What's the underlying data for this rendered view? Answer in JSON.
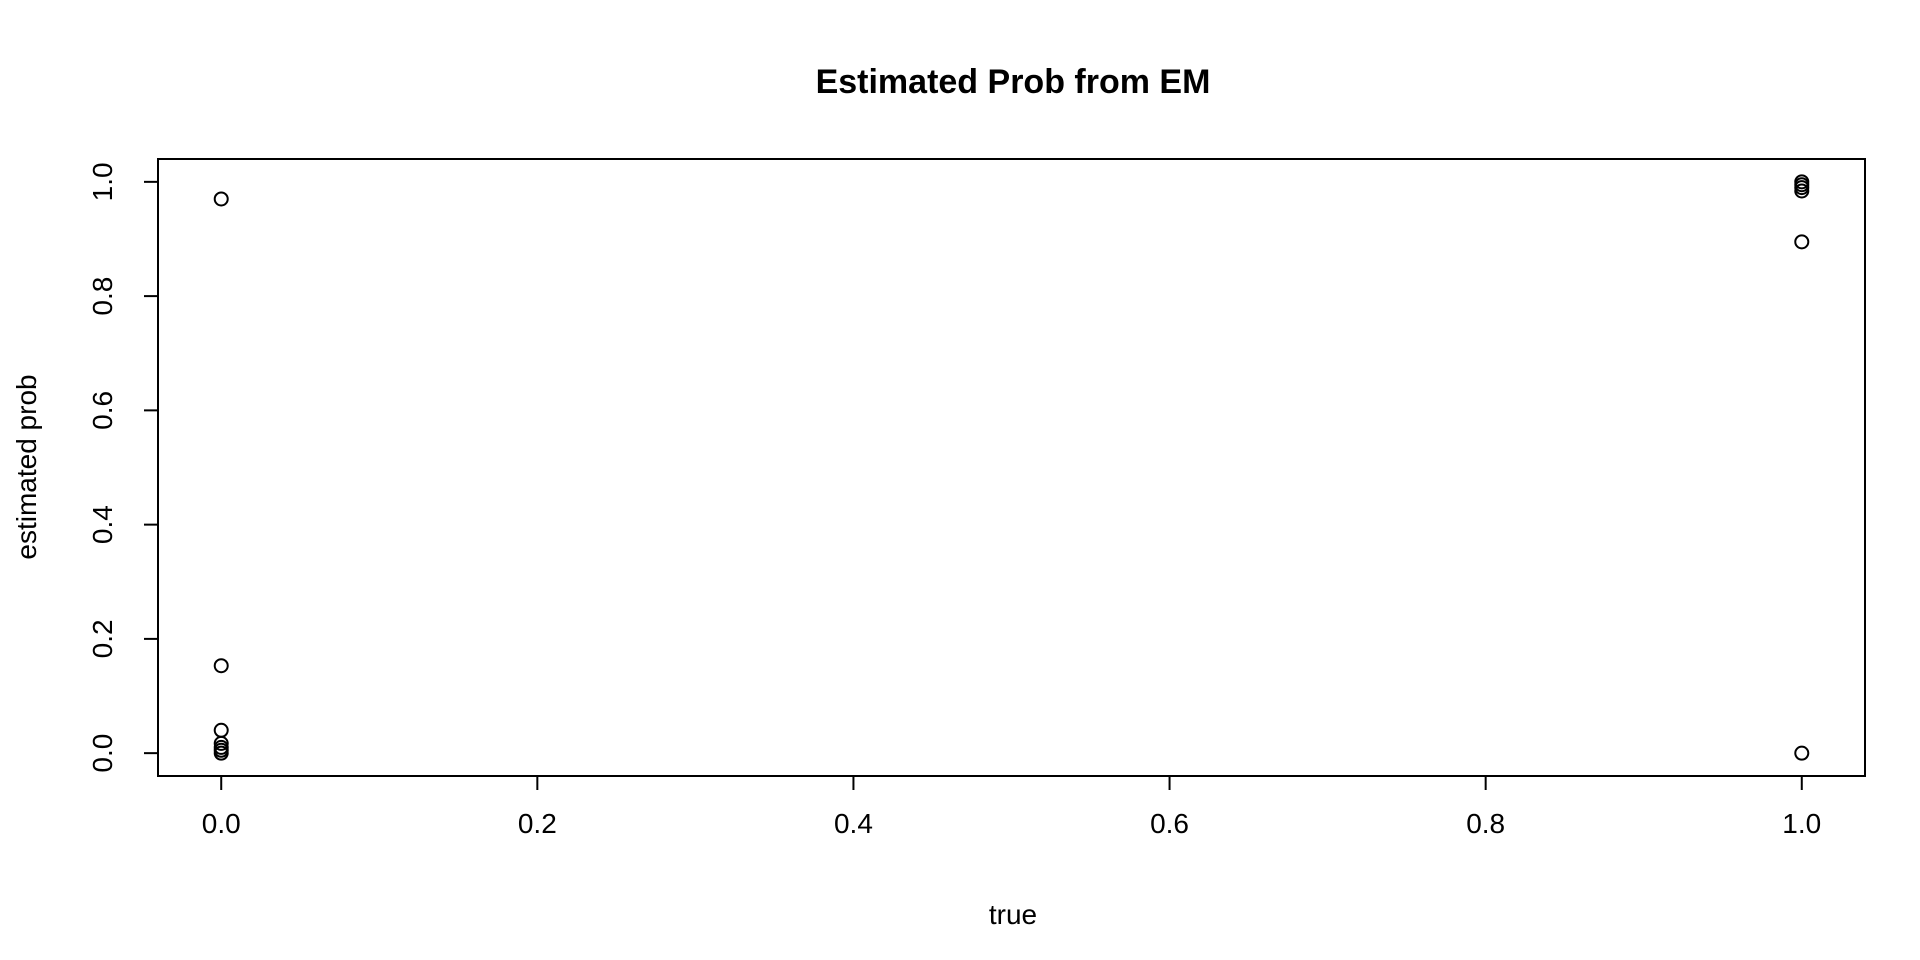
{
  "chart_data": {
    "type": "scatter",
    "title": "Estimated Prob from EM",
    "xlabel": "true",
    "ylabel": "estimated prob",
    "xlim": [
      -0.04,
      1.04
    ],
    "ylim": [
      -0.04,
      1.04
    ],
    "xticks": [
      0.0,
      0.2,
      0.4,
      0.6,
      0.8,
      1.0
    ],
    "xtick_labels": [
      "0.0",
      "0.2",
      "0.4",
      "0.6",
      "0.8",
      "1.0"
    ],
    "yticks": [
      0.0,
      0.2,
      0.4,
      0.6,
      0.8,
      1.0
    ],
    "ytick_labels": [
      "0.0",
      "0.2",
      "0.4",
      "0.6",
      "0.8",
      "1.0"
    ],
    "grid": false,
    "marker": "open-circle",
    "color": "#000000",
    "points": [
      {
        "x": 0,
        "y": 0.97
      },
      {
        "x": 0,
        "y": 0.153
      },
      {
        "x": 0,
        "y": 0.04
      },
      {
        "x": 0,
        "y": 0.017
      },
      {
        "x": 0,
        "y": 0.01
      },
      {
        "x": 0,
        "y": 0.005
      },
      {
        "x": 0,
        "y": 0.0
      },
      {
        "x": 1,
        "y": 1.0
      },
      {
        "x": 1,
        "y": 0.995
      },
      {
        "x": 1,
        "y": 0.99
      },
      {
        "x": 1,
        "y": 0.984
      },
      {
        "x": 1,
        "y": 0.895
      },
      {
        "x": 1,
        "y": 0.0
      }
    ]
  }
}
